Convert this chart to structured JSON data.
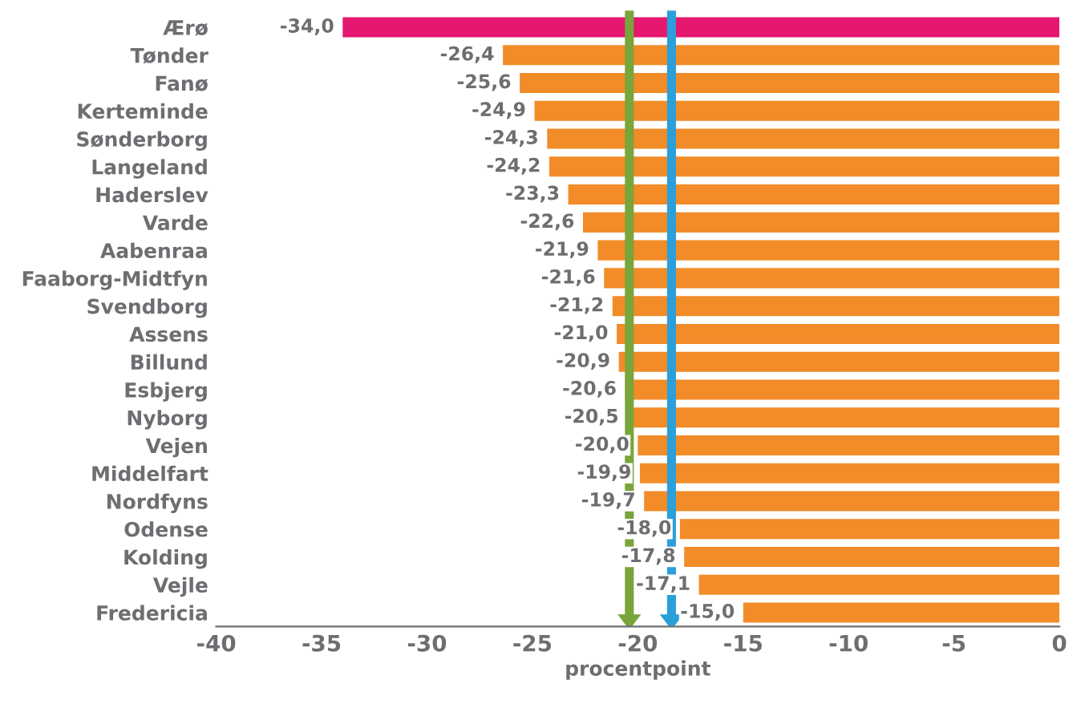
{
  "chart_data": {
    "type": "bar",
    "orientation": "horizontal",
    "xlabel": "procentpoint",
    "categories": [
      "Ærø",
      "Tønder",
      "Fanø",
      "Kerteminde",
      "Sønderborg",
      "Langeland",
      "Haderslev",
      "Varde",
      "Aabenraa",
      "Faaborg-Midtfyn",
      "Svendborg",
      "Assens",
      "Billund",
      "Esbjerg",
      "Nyborg",
      "Vejen",
      "Middelfart",
      "Nordfyns",
      "Odense",
      "Kolding",
      "Vejle",
      "Fredericia"
    ],
    "values": [
      -34.0,
      -26.4,
      -25.6,
      -24.9,
      -24.3,
      -24.2,
      -23.3,
      -22.6,
      -21.9,
      -21.6,
      -21.2,
      -21.0,
      -20.9,
      -20.6,
      -20.5,
      -20.0,
      -19.9,
      -19.7,
      -18.0,
      -17.8,
      -17.1,
      -15.0
    ],
    "value_labels": [
      "-34,0",
      "-26,4",
      "-25,6",
      "-24,9",
      "-24,3",
      "-24,2",
      "-23,3",
      "-22,6",
      "-21,9",
      "-21,6",
      "-21,2",
      "-21,0",
      "-20,9",
      "-20,6",
      "-20,5",
      "-20,0",
      "-19,9",
      "-19,7",
      "-18,0",
      "-17,8",
      "-17,1",
      "-15,0"
    ],
    "colors": [
      "#e5176f",
      "#f28c28",
      "#f28c28",
      "#f28c28",
      "#f28c28",
      "#f28c28",
      "#f28c28",
      "#f28c28",
      "#f28c28",
      "#f28c28",
      "#f28c28",
      "#f28c28",
      "#f28c28",
      "#f28c28",
      "#f28c28",
      "#f28c28",
      "#f28c28",
      "#f28c28",
      "#f28c28",
      "#f28c28",
      "#f28c28",
      "#f28c28"
    ],
    "xlim": [
      -40,
      0
    ],
    "xticks": [
      -40,
      -35,
      -30,
      -25,
      -20,
      -15,
      -10,
      -5,
      0
    ],
    "ref_lines": [
      {
        "axis": "x",
        "value": -20.4,
        "color": "#7aa53a"
      },
      {
        "axis": "x",
        "value": -18.4,
        "color": "#2b9fd9"
      }
    ],
    "grid": false
  }
}
